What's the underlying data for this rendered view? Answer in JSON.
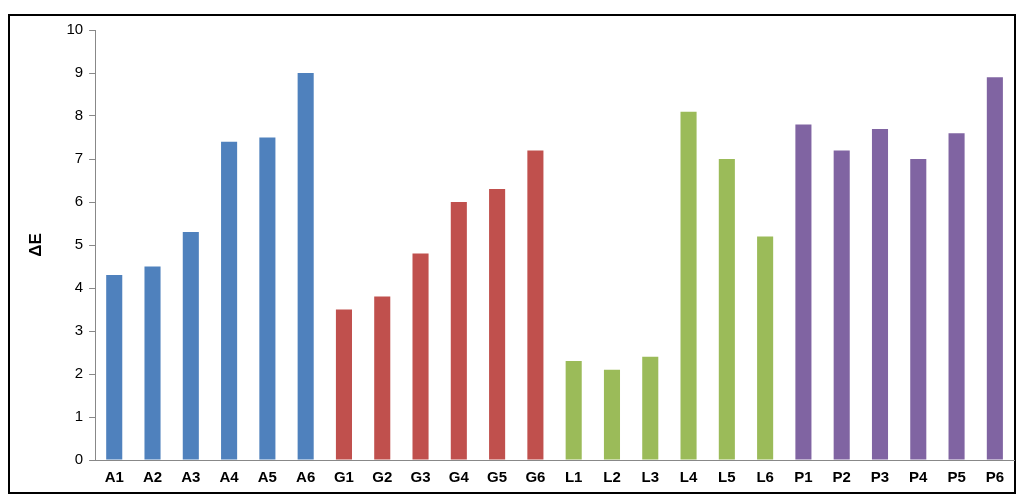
{
  "chart_data": {
    "type": "bar",
    "ylabel": "ΔE",
    "categories": [
      "A1",
      "A2",
      "A3",
      "A4",
      "A5",
      "A6",
      "G1",
      "G2",
      "G3",
      "G4",
      "G5",
      "G6",
      "L1",
      "L2",
      "L3",
      "L4",
      "L5",
      "L6",
      "P1",
      "P2",
      "P3",
      "P4",
      "P5",
      "P6"
    ],
    "values": [
      4.3,
      4.5,
      5.3,
      7.4,
      7.5,
      9.0,
      3.5,
      3.8,
      4.8,
      6.0,
      6.3,
      7.2,
      2.3,
      2.1,
      2.4,
      8.1,
      7.0,
      5.2,
      7.8,
      7.2,
      7.7,
      7.0,
      7.6,
      8.9
    ],
    "colors": [
      "#4f81bd",
      "#4f81bd",
      "#4f81bd",
      "#4f81bd",
      "#4f81bd",
      "#4f81bd",
      "#c0504d",
      "#c0504d",
      "#c0504d",
      "#c0504d",
      "#c0504d",
      "#c0504d",
      "#9bbb59",
      "#9bbb59",
      "#9bbb59",
      "#9bbb59",
      "#9bbb59",
      "#9bbb59",
      "#8064a2",
      "#8064a2",
      "#8064a2",
      "#8064a2",
      "#8064a2",
      "#8064a2"
    ],
    "ylim": [
      0,
      10
    ],
    "yticks": [
      0,
      1,
      2,
      3,
      4,
      5,
      6,
      7,
      8,
      9,
      10
    ],
    "grid": false,
    "legend": false
  }
}
